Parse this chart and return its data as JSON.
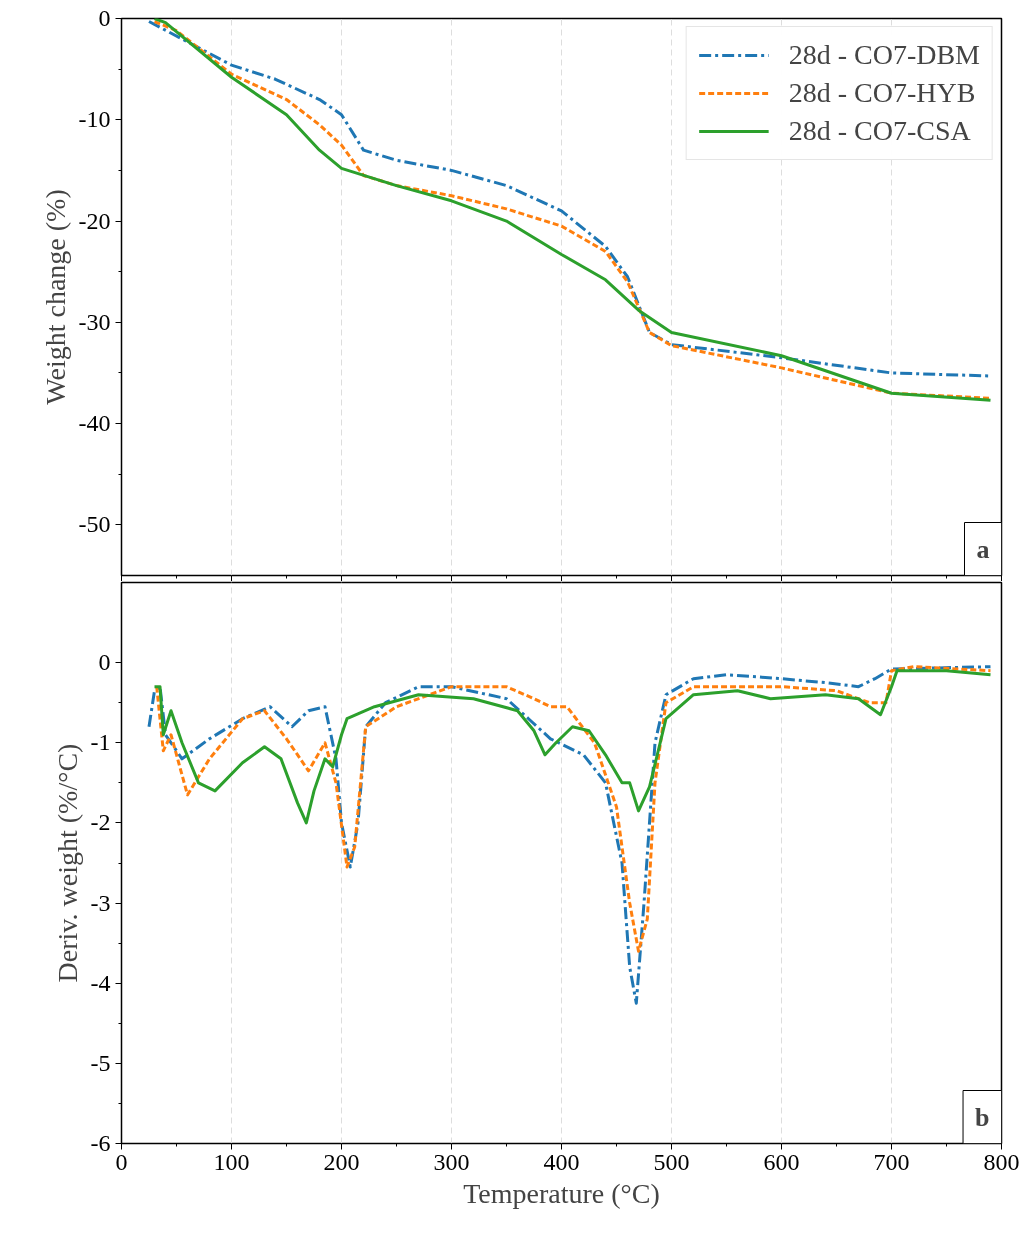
{
  "chart_data": [
    {
      "type": "line",
      "ylabel": "Weight change (%)",
      "xlim": [
        0,
        800
      ],
      "xticks": [
        0,
        100,
        200,
        300,
        400,
        500,
        600,
        700,
        800
      ],
      "ylim": [
        -55,
        0
      ],
      "yticks": [
        0,
        -10,
        -20,
        -30,
        -40,
        -50
      ],
      "grid": "x",
      "legend": "top right",
      "tick_labels": "y",
      "annotations": [
        "a"
      ],
      "series": [
        {
          "name": "28d - CO7-DBM",
          "color": "#1f77b4",
          "line_style": "dashdot",
          "x": [
            25,
            100,
            140,
            180,
            200,
            220,
            250,
            300,
            350,
            400,
            440,
            460,
            480,
            500,
            600,
            700,
            790
          ],
          "values": [
            -0.3,
            -4.6,
            -6,
            -8,
            -9.5,
            -13,
            -14,
            -15,
            -16.5,
            -19,
            -22.5,
            -25.5,
            -31,
            -32.2,
            -33.5,
            -35,
            -35.3
          ]
        },
        {
          "name": "28d - CO7-HYB",
          "color": "#ff7f0e",
          "line_style": "dashed",
          "x": [
            30,
            50,
            100,
            150,
            180,
            200,
            220,
            250,
            300,
            350,
            400,
            440,
            460,
            480,
            500,
            600,
            700,
            790
          ],
          "values": [
            -0.3,
            -1.2,
            -5.5,
            -8,
            -10.5,
            -12.5,
            -15.5,
            -16.5,
            -17.5,
            -18.8,
            -20.5,
            -23,
            -26,
            -31,
            -32.3,
            -34.5,
            -37,
            -37.5
          ]
        },
        {
          "name": "28d - CO7-CSA",
          "color": "#2ca02c",
          "line_style": "solid",
          "x": [
            30,
            40,
            100,
            150,
            180,
            200,
            250,
            300,
            350,
            400,
            440,
            470,
            500,
            600,
            700,
            790
          ],
          "values": [
            0,
            -0.4,
            -5.8,
            -9.5,
            -13,
            -14.8,
            -16.5,
            -18,
            -20,
            -23.3,
            -25.8,
            -28.8,
            -31,
            -33.3,
            -37,
            -37.7
          ]
        }
      ]
    },
    {
      "type": "line",
      "xlabel": "Temperature (°C)",
      "ylabel": "Deriv. weight (%/°C)",
      "xlim": [
        0,
        800
      ],
      "xticks": [
        0,
        100,
        200,
        300,
        400,
        500,
        600,
        700,
        800
      ],
      "ylim": [
        -6,
        1
      ],
      "yticks": [
        0,
        -1,
        -2,
        -3,
        -4,
        -5,
        -6
      ],
      "grid": "x",
      "annotations": [
        "b"
      ],
      "series": [
        {
          "color": "#1f77b4",
          "line_style": "dashdot",
          "x": [
            25,
            30,
            35,
            40,
            55,
            80,
            110,
            135,
            155,
            170,
            185,
            195,
            200,
            208,
            215,
            222,
            240,
            270,
            300,
            350,
            370,
            390,
            420,
            440,
            455,
            462,
            468,
            475,
            485,
            495,
            520,
            550,
            600,
            640,
            670,
            685,
            700,
            790
          ],
          "values": [
            -0.8,
            -0.35,
            -0.3,
            -0.9,
            -1.2,
            -0.95,
            -0.7,
            -0.55,
            -0.8,
            -0.6,
            -0.55,
            -1.2,
            -2.0,
            -2.55,
            -2.0,
            -0.8,
            -0.5,
            -0.3,
            -0.3,
            -0.45,
            -0.7,
            -0.95,
            -1.15,
            -1.5,
            -2.5,
            -3.8,
            -4.25,
            -3,
            -1,
            -0.4,
            -0.2,
            -0.15,
            -0.2,
            -0.25,
            -0.3,
            -0.2,
            -0.08,
            -0.05
          ]
        },
        {
          "color": "#ff7f0e",
          "line_style": "dashed",
          "x": [
            32,
            38,
            45,
            60,
            80,
            110,
            130,
            150,
            170,
            185,
            195,
            205,
            212,
            222,
            250,
            300,
            350,
            375,
            390,
            405,
            430,
            450,
            462,
            470,
            478,
            485,
            495,
            520,
            600,
            650,
            680,
            695,
            700,
            720,
            790
          ],
          "values": [
            -0.3,
            -1.1,
            -0.9,
            -1.65,
            -1.2,
            -0.7,
            -0.6,
            -0.95,
            -1.35,
            -1.0,
            -1.5,
            -2.55,
            -2.3,
            -0.8,
            -0.55,
            -0.3,
            -0.3,
            -0.45,
            -0.55,
            -0.55,
            -1.0,
            -1.8,
            -3.0,
            -3.6,
            -3.2,
            -1.5,
            -0.5,
            -0.3,
            -0.3,
            -0.35,
            -0.5,
            -0.5,
            -0.1,
            -0.05,
            -0.1
          ]
        },
        {
          "color": "#2ca02c",
          "line_style": "solid",
          "x": [
            30,
            35,
            38,
            45,
            55,
            70,
            85,
            110,
            130,
            145,
            160,
            168,
            175,
            185,
            192,
            200,
            205,
            230,
            270,
            320,
            360,
            375,
            385,
            395,
            410,
            425,
            440,
            455,
            462,
            470,
            480,
            495,
            520,
            560,
            590,
            640,
            670,
            690,
            700,
            705,
            750,
            790
          ],
          "values": [
            -0.3,
            -0.3,
            -0.9,
            -0.6,
            -1.0,
            -1.5,
            -1.6,
            -1.25,
            -1.05,
            -1.2,
            -1.75,
            -2.0,
            -1.6,
            -1.2,
            -1.3,
            -0.9,
            -0.7,
            -0.55,
            -0.4,
            -0.45,
            -0.6,
            -0.85,
            -1.15,
            -1.0,
            -0.8,
            -0.85,
            -1.15,
            -1.5,
            -1.5,
            -1.85,
            -1.55,
            -0.7,
            -0.4,
            -0.35,
            -0.45,
            -0.4,
            -0.45,
            -0.65,
            -0.3,
            -0.1,
            -0.1,
            -0.15
          ]
        }
      ]
    }
  ]
}
